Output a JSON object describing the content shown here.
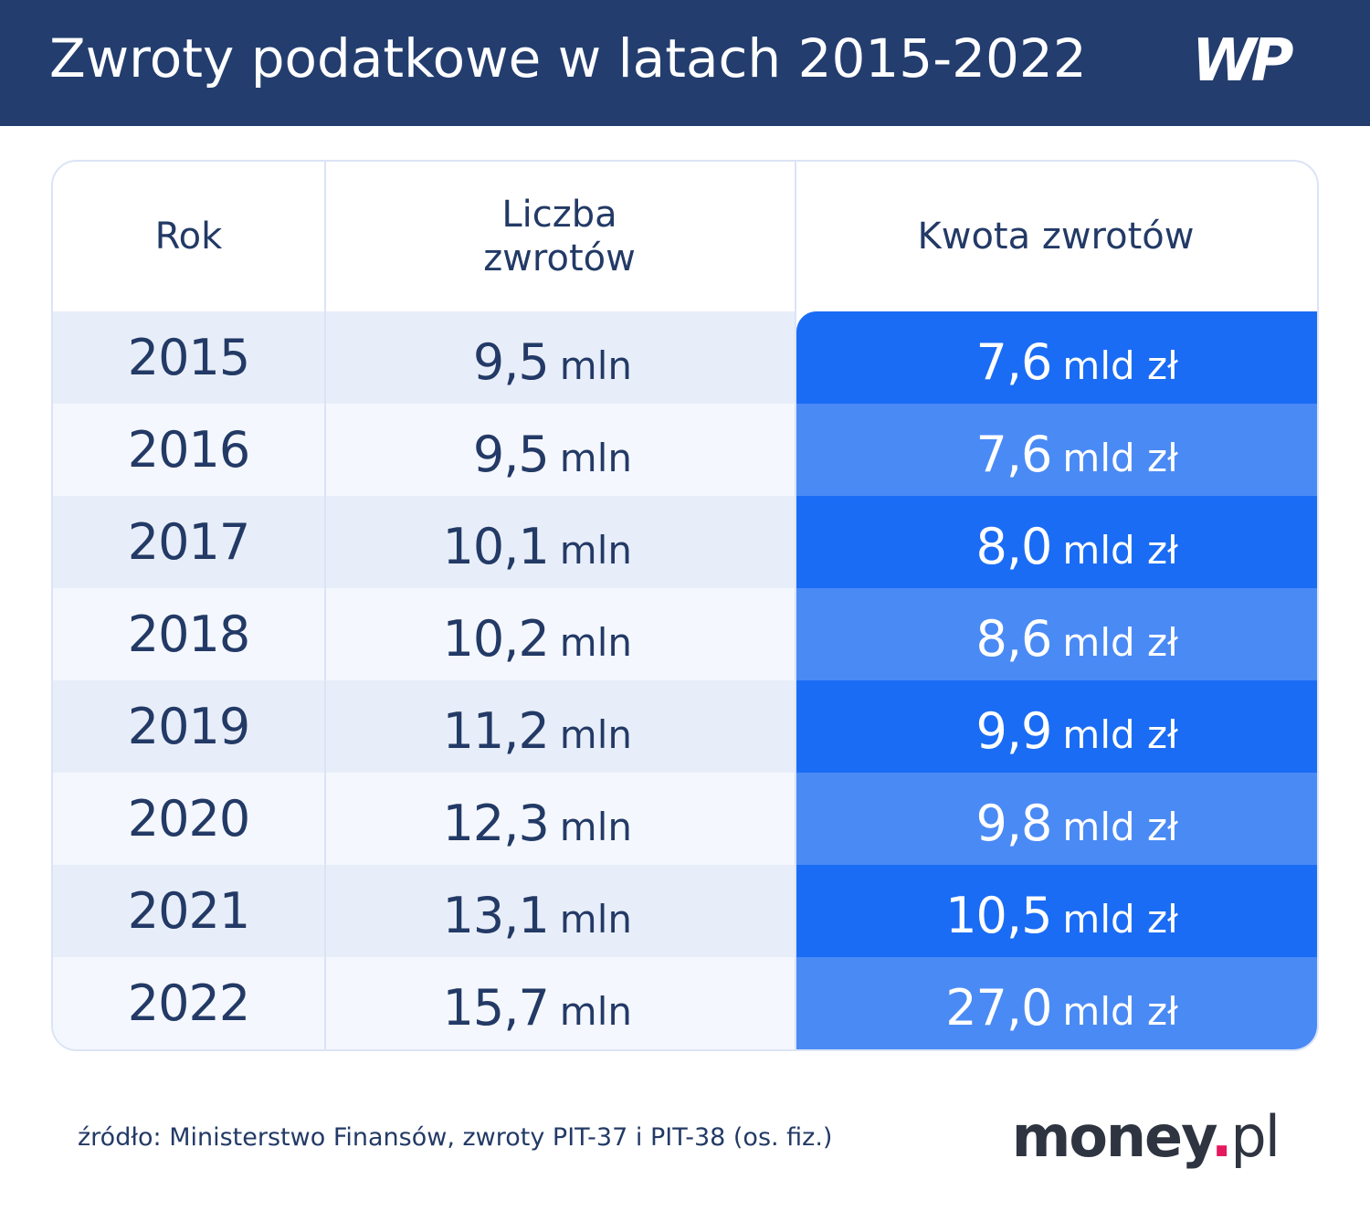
{
  "header": {
    "title": "Zwroty podatkowe w latach 2015-2022",
    "logo": "WP"
  },
  "table": {
    "columns": [
      "Rok",
      "Liczba zwrotów",
      "Kwota zwrotów"
    ],
    "rows": [
      [
        "2015",
        "9,5",
        "mln",
        "7,6",
        "mld zł"
      ],
      [
        "2016",
        "9,5",
        "mln",
        "7,6",
        "mld zł"
      ],
      [
        "2017",
        "10,1",
        "mln",
        "8,0",
        "mld zł"
      ],
      [
        "2018",
        "10,2",
        "mln",
        "8,6",
        "mld zł"
      ],
      [
        "2019",
        "11,2",
        "mln",
        "9,9",
        "mld zł"
      ],
      [
        "2020",
        "12,3",
        "mln",
        "9,8",
        "mld zł"
      ],
      [
        "2021",
        "13,1",
        "mln",
        "10,5",
        "mld zł"
      ],
      [
        "2022",
        "15,7",
        "mln",
        "27,0",
        "mld zł"
      ]
    ]
  },
  "footer": {
    "source": "źródło: Ministerstwo Finansów, zwroty PIT-37 i PIT-38 (os. fiz.)",
    "brand": [
      "money",
      ".",
      "pl"
    ]
  }
}
